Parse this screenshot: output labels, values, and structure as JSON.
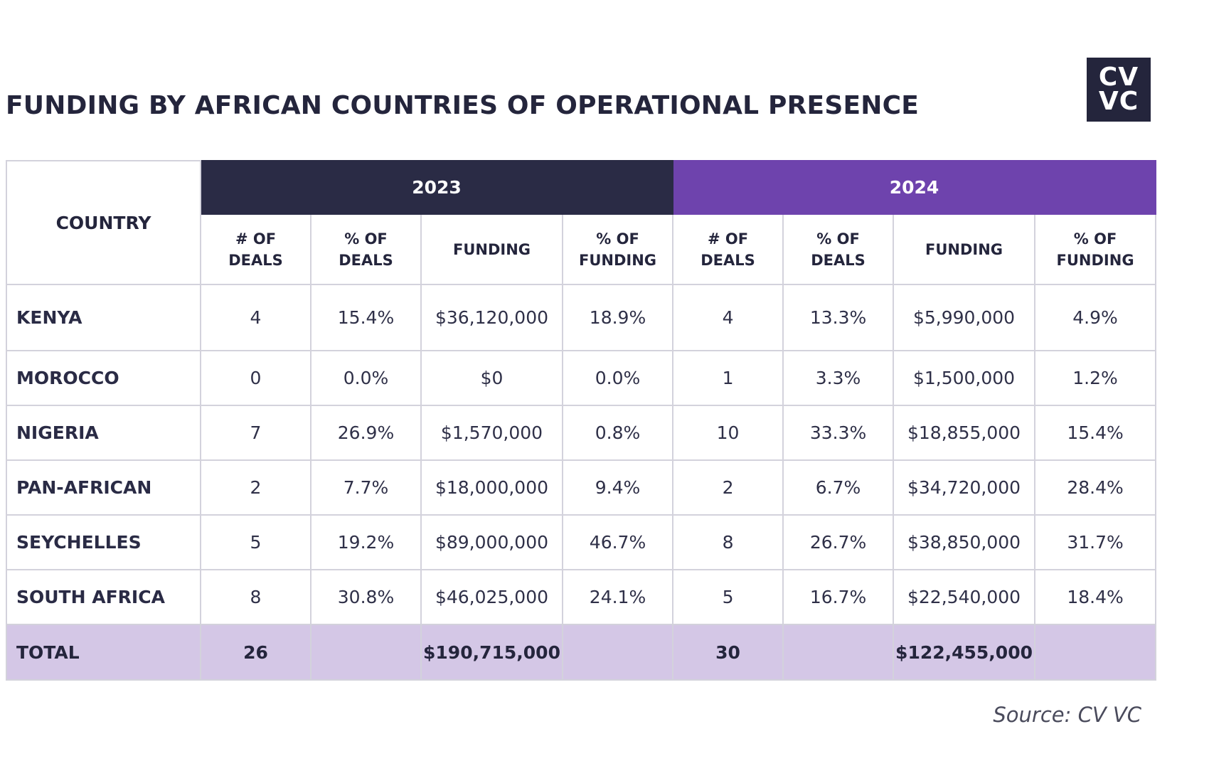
{
  "title": "FUNDING BY AFRICAN COUNTRIES OF OPERATIONAL PRESENCE",
  "logo": {
    "line1": "CV",
    "line2": "VC"
  },
  "source": "Source: CV VC",
  "colors": {
    "header_2023": "#2a2b45",
    "header_2024": "#6e43ad",
    "total_row": "#d4c7e6",
    "text_dark": "#24253c"
  },
  "chart_data": {
    "type": "table",
    "title": "FUNDING BY AFRICAN COUNTRIES OF OPERATIONAL PRESENCE",
    "country_header": "COUNTRY",
    "years": [
      "2023",
      "2024"
    ],
    "column_headers": [
      [
        "# OF",
        "DEALS"
      ],
      [
        "% OF",
        "DEALS"
      ],
      [
        "FUNDING"
      ],
      [
        "% OF",
        "FUNDING"
      ]
    ],
    "rows": [
      {
        "country": "KENYA",
        "y2023": [
          "4",
          "15.4%",
          "$36,120,000",
          "18.9%"
        ],
        "y2024": [
          "4",
          "13.3%",
          "$5,990,000",
          "4.9%"
        ]
      },
      {
        "country": "MOROCCO",
        "y2023": [
          "0",
          "0.0%",
          "$0",
          "0.0%"
        ],
        "y2024": [
          "1",
          "3.3%",
          "$1,500,000",
          "1.2%"
        ]
      },
      {
        "country": "NIGERIA",
        "y2023": [
          "7",
          "26.9%",
          "$1,570,000",
          "0.8%"
        ],
        "y2024": [
          "10",
          "33.3%",
          "$18,855,000",
          "15.4%"
        ]
      },
      {
        "country": "PAN-AFRICAN",
        "y2023": [
          "2",
          "7.7%",
          "$18,000,000",
          "9.4%"
        ],
        "y2024": [
          "2",
          "6.7%",
          "$34,720,000",
          "28.4%"
        ]
      },
      {
        "country": "SEYCHELLES",
        "y2023": [
          "5",
          "19.2%",
          "$89,000,000",
          "46.7%"
        ],
        "y2024": [
          "8",
          "26.7%",
          "$38,850,000",
          "31.7%"
        ]
      },
      {
        "country": "SOUTH AFRICA",
        "y2023": [
          "8",
          "30.8%",
          "$46,025,000",
          "24.1%"
        ],
        "y2024": [
          "5",
          "16.7%",
          "$22,540,000",
          "18.4%"
        ]
      }
    ],
    "total": {
      "label": "TOTAL",
      "y2023": [
        "26",
        "",
        "$190,715,000",
        ""
      ],
      "y2024": [
        "30",
        "",
        "$122,455,000",
        ""
      ]
    }
  }
}
